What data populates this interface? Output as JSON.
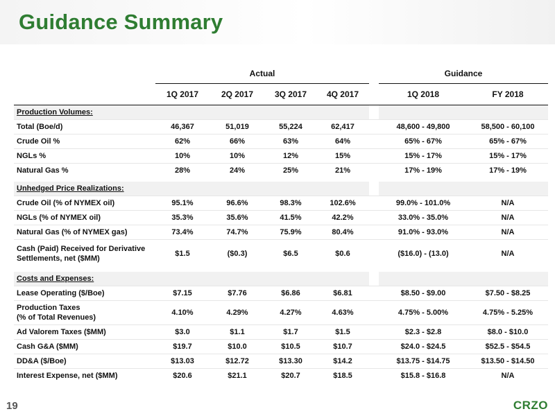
{
  "page": {
    "title": "Guidance Summary",
    "page_number": "19",
    "logo_text": "CRZO"
  },
  "table": {
    "group_actual": "Actual",
    "group_guidance": "Guidance",
    "columns": [
      "1Q 2017",
      "2Q 2017",
      "3Q 2017",
      "4Q 2017",
      "1Q 2018",
      "FY 2018"
    ],
    "sections": [
      {
        "title": "Production Volumes:",
        "rows": [
          {
            "label": "Total (Boe/d)",
            "values": [
              "46,367",
              "51,019",
              "55,224",
              "62,417",
              "48,600 - 49,800",
              "58,500 - 60,100"
            ]
          },
          {
            "label": "Crude Oil %",
            "values": [
              "62%",
              "66%",
              "63%",
              "64%",
              "65% - 67%",
              "65% - 67%"
            ]
          },
          {
            "label": "NGLs %",
            "values": [
              "10%",
              "10%",
              "12%",
              "15%",
              "15% - 17%",
              "15% - 17%"
            ]
          },
          {
            "label": "Natural Gas %",
            "values": [
              "28%",
              "24%",
              "25%",
              "21%",
              "17% - 19%",
              "17% - 19%"
            ]
          }
        ]
      },
      {
        "title": "Unhedged Price Realizations:",
        "rows": [
          {
            "label": "Crude Oil (% of NYMEX oil)",
            "values": [
              "95.1%",
              "96.6%",
              "98.3%",
              "102.6%",
              "99.0% - 101.0%",
              "N/A"
            ]
          },
          {
            "label": "NGLs (% of NYMEX oil)",
            "values": [
              "35.3%",
              "35.6%",
              "41.5%",
              "42.2%",
              "33.0% - 35.0%",
              "N/A"
            ]
          },
          {
            "label": "Natural Gas (% of NYMEX gas)",
            "values": [
              "73.4%",
              "74.7%",
              "75.9%",
              "80.4%",
              "91.0% - 93.0%",
              "N/A"
            ]
          },
          {
            "label_line1": "Cash (Paid) Received for Derivative",
            "label_line2": "Settlements, net ($MM)",
            "values": [
              "$1.5",
              "($0.3)",
              "$6.5",
              "$0.6",
              "($16.0) - (13.0)",
              "N/A"
            ]
          }
        ]
      },
      {
        "title": "Costs and Expenses:",
        "rows": [
          {
            "label": "Lease Operating ($/Boe)",
            "values": [
              "$7.15",
              "$7.76",
              "$6.86",
              "$6.81",
              "$8.50 - $9.00",
              "$7.50 - $8.25"
            ]
          },
          {
            "label_line1": "Production Taxes",
            "label_line2": "(% of Total Revenues)",
            "values": [
              "4.10%",
              "4.29%",
              "4.27%",
              "4.63%",
              "4.75% - 5.00%",
              "4.75% - 5.25%"
            ]
          },
          {
            "label": "Ad Valorem Taxes ($MM)",
            "values": [
              "$3.0",
              "$1.1",
              "$1.7",
              "$1.5",
              "$2.3 - $2.8",
              "$8.0 - $10.0"
            ]
          },
          {
            "label": "Cash G&A ($MM)",
            "values": [
              "$19.7",
              "$10.0",
              "$10.5",
              "$10.7",
              "$24.0 - $24.5",
              "$52.5 - $54.5"
            ]
          },
          {
            "label": "DD&A ($/Boe)",
            "values": [
              "$13.03",
              "$12.72",
              "$13.30",
              "$14.2",
              "$13.75 - $14.75",
              "$13.50 - $14.50"
            ]
          },
          {
            "label": "Interest Expense, net ($MM)",
            "values": [
              "$20.6",
              "$21.1",
              "$20.7",
              "$18.5",
              "$15.8 - $16.8",
              "N/A"
            ]
          }
        ]
      }
    ]
  }
}
